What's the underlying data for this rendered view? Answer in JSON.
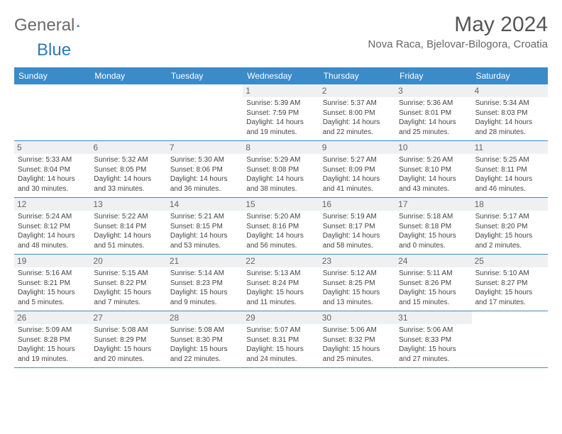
{
  "logo": {
    "part1": "General",
    "part2": "Blue"
  },
  "title": "May 2024",
  "location": "Nova Raca, Bjelovar-Bilogora, Croatia",
  "accent_color": "#3b8bc9",
  "daynum_bg": "#eef0f1",
  "text_color": "#444444",
  "weekdays": [
    "Sunday",
    "Monday",
    "Tuesday",
    "Wednesday",
    "Thursday",
    "Friday",
    "Saturday"
  ],
  "weeks": [
    [
      null,
      null,
      null,
      {
        "n": "1",
        "sr": "Sunrise: 5:39 AM",
        "ss": "Sunset: 7:59 PM",
        "dl": "Daylight: 14 hours and 19 minutes."
      },
      {
        "n": "2",
        "sr": "Sunrise: 5:37 AM",
        "ss": "Sunset: 8:00 PM",
        "dl": "Daylight: 14 hours and 22 minutes."
      },
      {
        "n": "3",
        "sr": "Sunrise: 5:36 AM",
        "ss": "Sunset: 8:01 PM",
        "dl": "Daylight: 14 hours and 25 minutes."
      },
      {
        "n": "4",
        "sr": "Sunrise: 5:34 AM",
        "ss": "Sunset: 8:03 PM",
        "dl": "Daylight: 14 hours and 28 minutes."
      }
    ],
    [
      {
        "n": "5",
        "sr": "Sunrise: 5:33 AM",
        "ss": "Sunset: 8:04 PM",
        "dl": "Daylight: 14 hours and 30 minutes."
      },
      {
        "n": "6",
        "sr": "Sunrise: 5:32 AM",
        "ss": "Sunset: 8:05 PM",
        "dl": "Daylight: 14 hours and 33 minutes."
      },
      {
        "n": "7",
        "sr": "Sunrise: 5:30 AM",
        "ss": "Sunset: 8:06 PM",
        "dl": "Daylight: 14 hours and 36 minutes."
      },
      {
        "n": "8",
        "sr": "Sunrise: 5:29 AM",
        "ss": "Sunset: 8:08 PM",
        "dl": "Daylight: 14 hours and 38 minutes."
      },
      {
        "n": "9",
        "sr": "Sunrise: 5:27 AM",
        "ss": "Sunset: 8:09 PM",
        "dl": "Daylight: 14 hours and 41 minutes."
      },
      {
        "n": "10",
        "sr": "Sunrise: 5:26 AM",
        "ss": "Sunset: 8:10 PM",
        "dl": "Daylight: 14 hours and 43 minutes."
      },
      {
        "n": "11",
        "sr": "Sunrise: 5:25 AM",
        "ss": "Sunset: 8:11 PM",
        "dl": "Daylight: 14 hours and 46 minutes."
      }
    ],
    [
      {
        "n": "12",
        "sr": "Sunrise: 5:24 AM",
        "ss": "Sunset: 8:12 PM",
        "dl": "Daylight: 14 hours and 48 minutes."
      },
      {
        "n": "13",
        "sr": "Sunrise: 5:22 AM",
        "ss": "Sunset: 8:14 PM",
        "dl": "Daylight: 14 hours and 51 minutes."
      },
      {
        "n": "14",
        "sr": "Sunrise: 5:21 AM",
        "ss": "Sunset: 8:15 PM",
        "dl": "Daylight: 14 hours and 53 minutes."
      },
      {
        "n": "15",
        "sr": "Sunrise: 5:20 AM",
        "ss": "Sunset: 8:16 PM",
        "dl": "Daylight: 14 hours and 56 minutes."
      },
      {
        "n": "16",
        "sr": "Sunrise: 5:19 AM",
        "ss": "Sunset: 8:17 PM",
        "dl": "Daylight: 14 hours and 58 minutes."
      },
      {
        "n": "17",
        "sr": "Sunrise: 5:18 AM",
        "ss": "Sunset: 8:18 PM",
        "dl": "Daylight: 15 hours and 0 minutes."
      },
      {
        "n": "18",
        "sr": "Sunrise: 5:17 AM",
        "ss": "Sunset: 8:20 PM",
        "dl": "Daylight: 15 hours and 2 minutes."
      }
    ],
    [
      {
        "n": "19",
        "sr": "Sunrise: 5:16 AM",
        "ss": "Sunset: 8:21 PM",
        "dl": "Daylight: 15 hours and 5 minutes."
      },
      {
        "n": "20",
        "sr": "Sunrise: 5:15 AM",
        "ss": "Sunset: 8:22 PM",
        "dl": "Daylight: 15 hours and 7 minutes."
      },
      {
        "n": "21",
        "sr": "Sunrise: 5:14 AM",
        "ss": "Sunset: 8:23 PM",
        "dl": "Daylight: 15 hours and 9 minutes."
      },
      {
        "n": "22",
        "sr": "Sunrise: 5:13 AM",
        "ss": "Sunset: 8:24 PM",
        "dl": "Daylight: 15 hours and 11 minutes."
      },
      {
        "n": "23",
        "sr": "Sunrise: 5:12 AM",
        "ss": "Sunset: 8:25 PM",
        "dl": "Daylight: 15 hours and 13 minutes."
      },
      {
        "n": "24",
        "sr": "Sunrise: 5:11 AM",
        "ss": "Sunset: 8:26 PM",
        "dl": "Daylight: 15 hours and 15 minutes."
      },
      {
        "n": "25",
        "sr": "Sunrise: 5:10 AM",
        "ss": "Sunset: 8:27 PM",
        "dl": "Daylight: 15 hours and 17 minutes."
      }
    ],
    [
      {
        "n": "26",
        "sr": "Sunrise: 5:09 AM",
        "ss": "Sunset: 8:28 PM",
        "dl": "Daylight: 15 hours and 19 minutes."
      },
      {
        "n": "27",
        "sr": "Sunrise: 5:08 AM",
        "ss": "Sunset: 8:29 PM",
        "dl": "Daylight: 15 hours and 20 minutes."
      },
      {
        "n": "28",
        "sr": "Sunrise: 5:08 AM",
        "ss": "Sunset: 8:30 PM",
        "dl": "Daylight: 15 hours and 22 minutes."
      },
      {
        "n": "29",
        "sr": "Sunrise: 5:07 AM",
        "ss": "Sunset: 8:31 PM",
        "dl": "Daylight: 15 hours and 24 minutes."
      },
      {
        "n": "30",
        "sr": "Sunrise: 5:06 AM",
        "ss": "Sunset: 8:32 PM",
        "dl": "Daylight: 15 hours and 25 minutes."
      },
      {
        "n": "31",
        "sr": "Sunrise: 5:06 AM",
        "ss": "Sunset: 8:33 PM",
        "dl": "Daylight: 15 hours and 27 minutes."
      },
      null
    ]
  ]
}
